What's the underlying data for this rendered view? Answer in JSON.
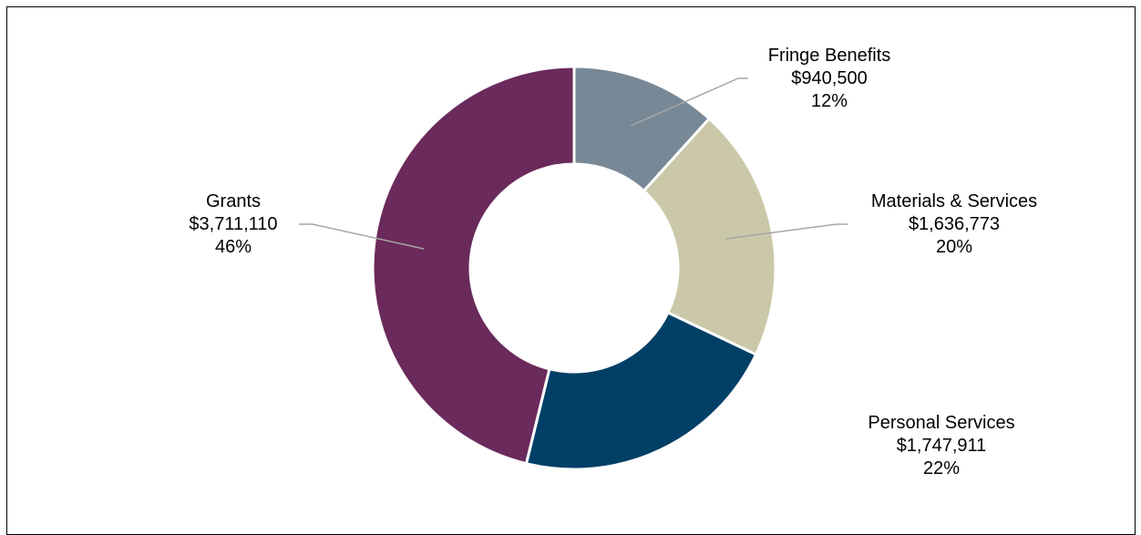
{
  "chart_data": {
    "type": "pie",
    "donut": true,
    "title": "",
    "legend": "none",
    "slices": [
      {
        "name": "Fringe Benefits",
        "value": 940500,
        "value_label": "$940,500",
        "percent_label": "12%",
        "color": "#778896"
      },
      {
        "name": "Materials & Services",
        "value": 1636773,
        "value_label": "$1,636,773",
        "percent_label": "20%",
        "color": "#CAC8A8"
      },
      {
        "name": "Personal Services",
        "value": 1747911,
        "value_label": "$1,747,911",
        "percent_label": "22%",
        "color": "#003F66"
      },
      {
        "name": "Grants",
        "value": 3711110,
        "value_label": "$3,711,110",
        "percent_label": "46%",
        "color": "#6A2A5B"
      }
    ]
  }
}
